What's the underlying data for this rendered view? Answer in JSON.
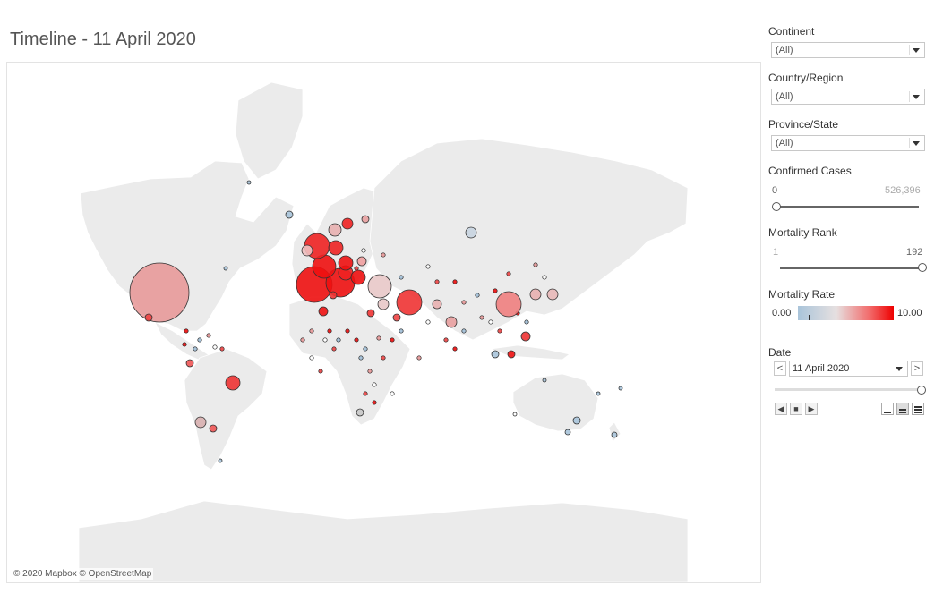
{
  "title": "Timeline - 11 April 2020",
  "map": {
    "attribution": "© 2020 Mapbox © OpenStreetMap",
    "land_color": "#ebebeb",
    "border_color": "#ffffff"
  },
  "filters": {
    "continent": {
      "label": "Continent",
      "value": "(All)"
    },
    "country": {
      "label": "Country/Region",
      "value": "(All)"
    },
    "province": {
      "label": "Province/State",
      "value": "(All)"
    },
    "confirmed": {
      "label": "Confirmed Cases",
      "min": "0",
      "max": "526,396",
      "handle_fraction": 0
    },
    "mortality_rank": {
      "label": "Mortality Rank",
      "min": "1",
      "max": "192",
      "handle_fraction": 1
    },
    "mortality_rate": {
      "label": "Mortality Rate",
      "min": "0.00",
      "max": "10.00",
      "color_low": "#a9c4da",
      "color_mid": "#e6e0e0",
      "color_high": "#ee0000"
    },
    "date": {
      "label": "Date",
      "value": "11 April 2020",
      "prev": "<",
      "next": ">",
      "slider_fraction": 1
    }
  },
  "controls": {
    "back": "◀",
    "stop": "■",
    "play": "▶"
  }
}
